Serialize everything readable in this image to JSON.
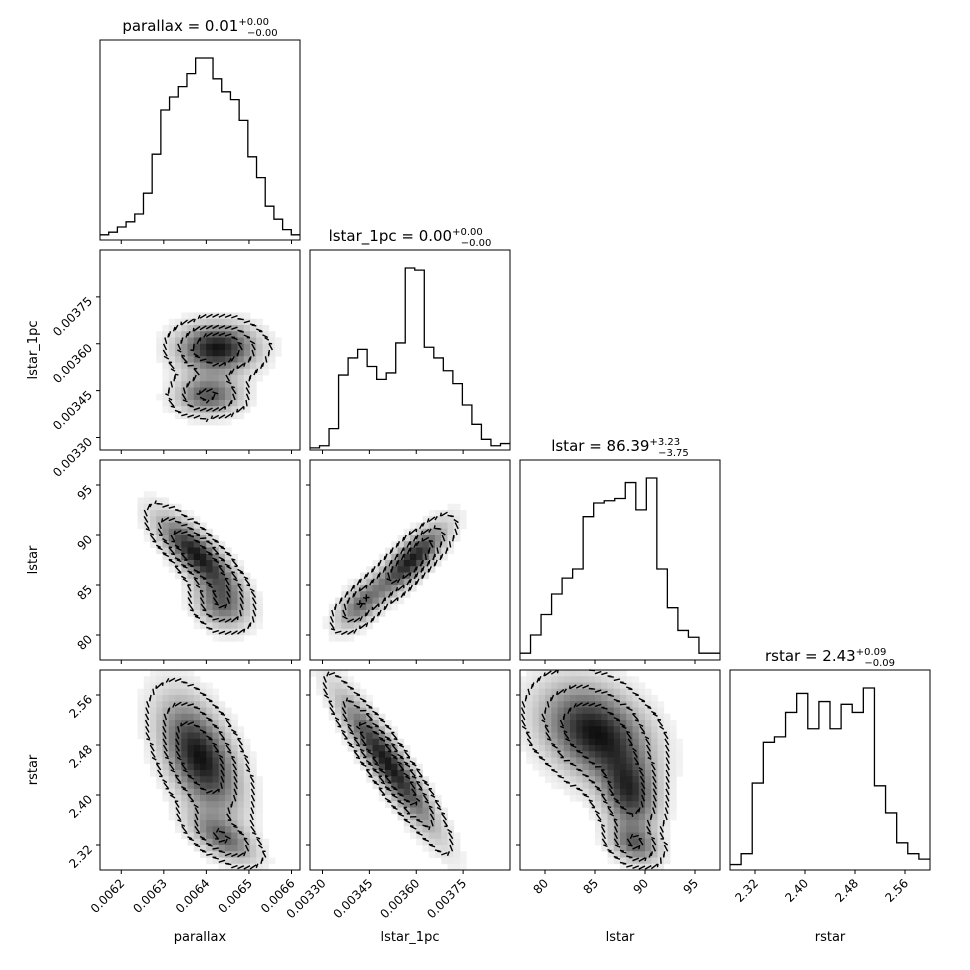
{
  "chart_data": {
    "type": "corner",
    "parameters": [
      "parallax",
      "lstar_1pc",
      "lstar",
      "rstar"
    ],
    "titles": [
      {
        "param": "parallax",
        "text": "parallax = 0.01",
        "plus": "+0.00",
        "minus": "−0.00"
      },
      {
        "param": "lstar_1pc",
        "text": "lstar_1pc = 0.00",
        "plus": "+0.00",
        "minus": "−0.00"
      },
      {
        "param": "lstar",
        "text": "lstar = 86.39",
        "plus": "+3.23",
        "minus": "−3.75"
      },
      {
        "param": "rstar",
        "text": "rstar = 2.43",
        "plus": "+0.09",
        "minus": "−0.09"
      }
    ],
    "axes": {
      "parallax": {
        "label": "parallax",
        "range": [
          0.00615,
          0.00662
        ],
        "ticks": [
          0.0062,
          0.0063,
          0.0064,
          0.0065,
          0.0066
        ],
        "tick_labels": [
          "0.0062",
          "0.0063",
          "0.0064",
          "0.0065",
          "0.0066"
        ]
      },
      "lstar_1pc": {
        "label": "lstar_1pc",
        "range": [
          0.00326,
          0.0039
        ],
        "ticks": [
          0.0033,
          0.00345,
          0.0036,
          0.00375
        ],
        "tick_labels": [
          "0.00330",
          "0.00345",
          "0.00360",
          "0.00375"
        ]
      },
      "lstar": {
        "label": "lstar",
        "range": [
          77.5,
          97.5
        ],
        "ticks": [
          80,
          85,
          90,
          95
        ],
        "tick_labels": [
          "80",
          "85",
          "90",
          "95"
        ]
      },
      "rstar": {
        "label": "rstar",
        "range": [
          2.28,
          2.6
        ],
        "ticks": [
          2.32,
          2.4,
          2.48,
          2.56
        ],
        "tick_labels": [
          "2.32",
          "2.40",
          "2.48",
          "2.56"
        ]
      }
    },
    "histograms": {
      "parallax": {
        "bin_range": [
          0.00615,
          0.00662
        ],
        "counts": [
          4,
          6,
          10,
          14,
          20,
          36,
          66,
          100,
          110,
          118,
          128,
          140,
          140,
          124,
          114,
          108,
          92,
          64,
          48,
          26,
          16,
          8,
          4
        ]
      },
      "lstar_1pc": {
        "bin_range": [
          0.00326,
          0.0039
        ],
        "counts": [
          2,
          4,
          20,
          70,
          86,
          94,
          78,
          66,
          72,
          100,
          170,
          168,
          96,
          86,
          74,
          62,
          42,
          24,
          10,
          4,
          6
        ]
      },
      "lstar": {
        "bin_range": [
          77.5,
          97.5
        ],
        "counts": [
          6,
          22,
          40,
          58,
          72,
          80,
          126,
          138,
          140,
          142,
          156,
          132,
          160,
          80,
          46,
          26,
          20,
          6,
          6
        ]
      },
      "rstar": {
        "bin_range": [
          2.28,
          2.6
        ],
        "counts": [
          4,
          12,
          64,
          94,
          98,
          116,
          130,
          104,
          124,
          104,
          122,
          116,
          134,
          62,
          42,
          20,
          12,
          8
        ]
      }
    },
    "pairs": [
      {
        "x": "parallax",
        "y": "lstar_1pc",
        "modes": [
          {
            "mx": 0.006425,
            "my": 0.003585,
            "sx": 6e-05,
            "sy": 5e-05,
            "rho": 0.0,
            "w": 1.0
          },
          {
            "mx": 0.006405,
            "my": 0.003435,
            "sx": 5e-05,
            "sy": 4e-05,
            "rho": 0.0,
            "w": 0.7
          }
        ]
      },
      {
        "x": "parallax",
        "y": "lstar",
        "modes": [
          {
            "mx": 0.006378,
            "my": 88.0,
            "sx": 6e-05,
            "sy": 2.5,
            "rho": -0.8,
            "w": 1.0
          },
          {
            "mx": 0.006432,
            "my": 83.0,
            "sx": 4e-05,
            "sy": 1.6,
            "rho": -0.3,
            "w": 0.6
          }
        ]
      },
      {
        "x": "lstar_1pc",
        "y": "lstar",
        "modes": [
          {
            "mx": 0.003585,
            "my": 87.5,
            "sx": 7e-05,
            "sy": 2.2,
            "rho": 0.8,
            "w": 1.0
          },
          {
            "mx": 0.00342,
            "my": 83.0,
            "sx": 5e-05,
            "sy": 1.6,
            "rho": 0.6,
            "w": 0.6
          }
        ]
      },
      {
        "x": "parallax",
        "y": "rstar",
        "modes": [
          {
            "mx": 0.006385,
            "my": 2.46,
            "sx": 6e-05,
            "sy": 0.06,
            "rho": -0.5,
            "w": 1.0
          },
          {
            "mx": 0.00644,
            "my": 2.33,
            "sx": 5e-05,
            "sy": 0.025,
            "rho": -0.6,
            "w": 0.6
          }
        ]
      },
      {
        "x": "lstar_1pc",
        "y": "rstar",
        "modes": [
          {
            "mx": 0.00351,
            "my": 2.45,
            "sx": 0.0001,
            "sy": 0.07,
            "rho": -0.92,
            "w": 1.0
          }
        ]
      },
      {
        "x": "lstar",
        "y": "rstar",
        "modes": [
          {
            "mx": 85.0,
            "my": 2.5,
            "sx": 3.5,
            "sy": 0.05,
            "rho": -0.3,
            "w": 1.0
          },
          {
            "mx": 88.5,
            "my": 2.4,
            "sx": 1.8,
            "sy": 0.04,
            "rho": -0.2,
            "w": 0.8
          },
          {
            "mx": 89.0,
            "my": 2.32,
            "sx": 1.6,
            "sy": 0.02,
            "rho": -0.3,
            "w": 0.6
          }
        ]
      }
    ],
    "contour_levels": [
      0.12,
      0.35,
      0.65
    ]
  }
}
